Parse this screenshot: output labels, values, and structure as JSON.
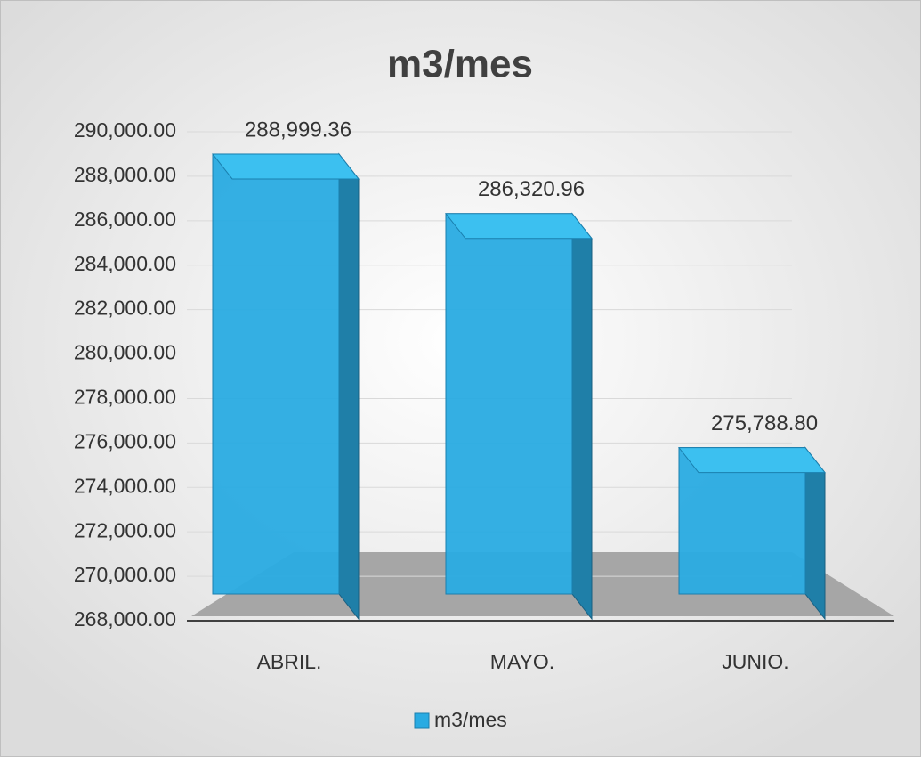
{
  "chart_data": {
    "type": "bar",
    "title": "m3/mes",
    "categories": [
      "ABRIL.",
      "MAYO.",
      "JUNIO."
    ],
    "series": [
      {
        "name": "m3/mes",
        "color": "#29abe2",
        "values": [
          288999.36,
          286320.96,
          275788.8
        ],
        "value_labels": [
          "288,999.36",
          "286,320.96",
          "275,788.80"
        ]
      }
    ],
    "ylim": [
      268000,
      290000
    ],
    "yticks": [
      {
        "value": 268000,
        "label": "268,000.00"
      },
      {
        "value": 270000,
        "label": "270,000.00"
      },
      {
        "value": 272000,
        "label": "272,000.00"
      },
      {
        "value": 274000,
        "label": "274,000.00"
      },
      {
        "value": 276000,
        "label": "276,000.00"
      },
      {
        "value": 278000,
        "label": "278,000.00"
      },
      {
        "value": 280000,
        "label": "280,000.00"
      },
      {
        "value": 282000,
        "label": "282,000.00"
      },
      {
        "value": 284000,
        "label": "284,000.00"
      },
      {
        "value": 286000,
        "label": "286,000.00"
      },
      {
        "value": 288000,
        "label": "288,000.00"
      },
      {
        "value": 290000,
        "label": "290,000.00"
      }
    ],
    "grid": true,
    "legend": "bottom"
  }
}
